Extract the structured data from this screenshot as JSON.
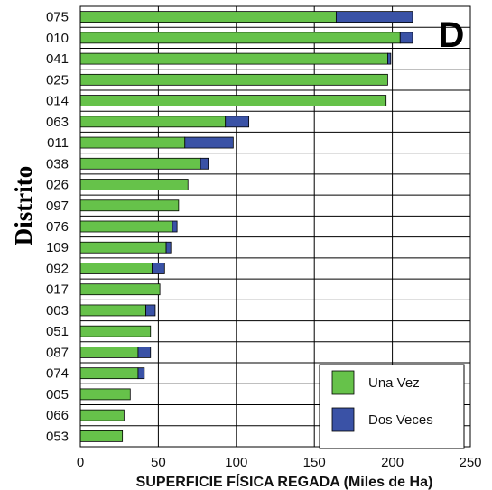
{
  "chart_data": {
    "type": "bar",
    "orientation": "horizontal",
    "stacked": true,
    "panel_label": "D",
    "xlabel": "SUPERFICIE FÍSICA REGADA (Miles de Ha)",
    "ylabel": "Distrito",
    "xlim": [
      0,
      250
    ],
    "xticks": [
      0,
      50,
      100,
      150,
      200,
      250
    ],
    "grid": "both",
    "legend_position": "bottom-right",
    "categories": [
      "075",
      "010",
      "041",
      "025",
      "014",
      "063",
      "011",
      "038",
      "026",
      "097",
      "076",
      "109",
      "092",
      "017",
      "003",
      "051",
      "087",
      "074",
      "005",
      "066",
      "053"
    ],
    "series": [
      {
        "name": "Una Vez",
        "color": "#66c24a",
        "values": [
          164,
          205,
          197,
          197,
          196,
          93,
          67,
          77,
          69,
          63,
          59,
          55,
          46,
          51,
          42,
          45,
          37,
          37,
          32,
          28,
          27
        ]
      },
      {
        "name": "Dos Veces",
        "color": "#3a52a6",
        "values": [
          49,
          8,
          2,
          0,
          0,
          15,
          31,
          5,
          0,
          0,
          3,
          3,
          8,
          0,
          6,
          0,
          8,
          4,
          0,
          0,
          0
        ]
      }
    ]
  }
}
